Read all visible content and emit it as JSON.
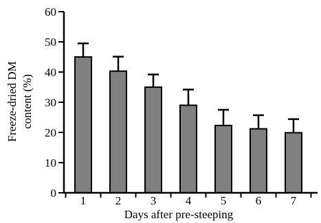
{
  "chart_data": {
    "type": "bar",
    "categories": [
      "1",
      "2",
      "3",
      "4",
      "5",
      "6",
      "7"
    ],
    "series": [
      {
        "values": [
          45.0,
          40.3,
          35.0,
          29.0,
          22.3,
          21.2,
          19.9
        ],
        "errors": [
          4.5,
          4.8,
          4.2,
          5.2,
          5.2,
          4.5,
          4.5
        ]
      }
    ],
    "xlabel": "Days after pre-steeping",
    "ylabel_lines": [
      "Freeze-dried DM",
      "content (%)"
    ],
    "ylim": [
      0,
      60
    ],
    "yticks": [
      "0",
      "10",
      "20",
      "30",
      "40",
      "50",
      "60"
    ],
    "bar_color": "#808080",
    "grid": false,
    "legend": "none"
  }
}
